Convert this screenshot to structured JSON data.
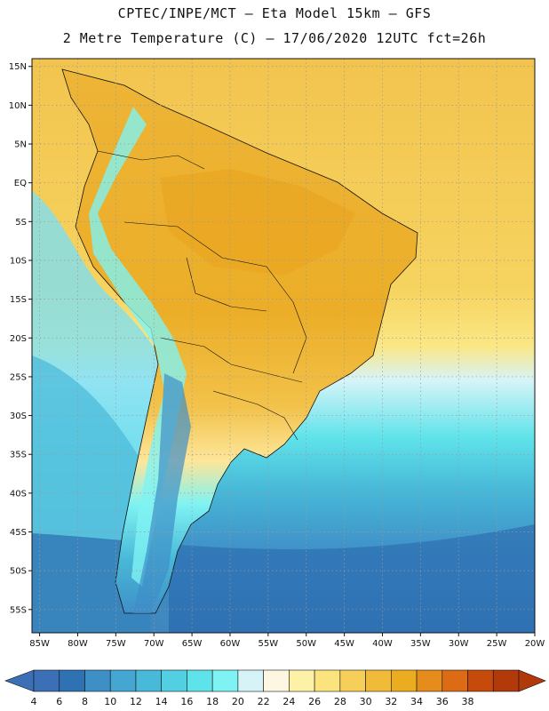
{
  "header": {
    "line1": "CPTEC/INPE/MCT –  Eta Model 15km – GFS",
    "line2": "2 Metre Temperature (C) – 17/06/2020 12UTC fct=26h"
  },
  "axes": {
    "lat_labels": [
      "15N",
      "10N",
      "5N",
      "EQ",
      "5S",
      "10S",
      "15S",
      "20S",
      "25S",
      "30S",
      "35S",
      "40S",
      "45S",
      "50S",
      "55S"
    ],
    "lat_values": [
      15,
      10,
      5,
      0,
      -5,
      -10,
      -15,
      -20,
      -25,
      -30,
      -35,
      -40,
      -45,
      -50,
      -55
    ],
    "lon_labels": [
      "85W",
      "80W",
      "75W",
      "70W",
      "65W",
      "60W",
      "55W",
      "50W",
      "45W",
      "40W",
      "35W",
      "30W",
      "25W",
      "20W"
    ],
    "lon_values": [
      -85,
      -80,
      -75,
      -70,
      -65,
      -60,
      -55,
      -50,
      -45,
      -40,
      -35,
      -30,
      -25,
      -20
    ],
    "lat_range": [
      -58,
      16
    ],
    "lon_range": [
      -86,
      -20
    ]
  },
  "colorbar": {
    "labels": [
      "4",
      "6",
      "8",
      "10",
      "12",
      "14",
      "16",
      "18",
      "20",
      "22",
      "24",
      "26",
      "28",
      "30",
      "32",
      "34",
      "36",
      "38"
    ],
    "colors": [
      "#3b6fb6",
      "#2f72b3",
      "#3f8fc7",
      "#45a6d2",
      "#48b9d8",
      "#52cfe0",
      "#5fe3ea",
      "#7ff3f3",
      "#d6f4f8",
      "#fdf7e2",
      "#fdf1a8",
      "#fbe37e",
      "#f6cf5a",
      "#f1bb3a",
      "#ecac20",
      "#e58c1c",
      "#db6b14",
      "#c54a0c",
      "#b23a0a"
    ]
  }
}
